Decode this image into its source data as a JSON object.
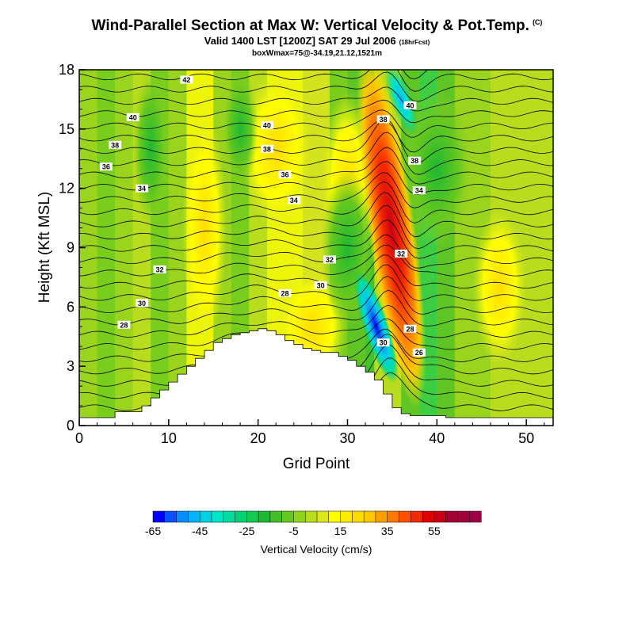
{
  "title": "Wind-Parallel Section at Max W: Vertical Velocity & Pot.Temp.",
  "copyright": "(C)",
  "subtitle": "Valid 1400 LST [1200Z] SAT 29 Jul 2006",
  "forecast": "(18hrFcst)",
  "subtitle2": "boxWmax=75@-34.19,21.12,1521m",
  "chart_data": {
    "type": "heatmap",
    "xlabel": "Grid Point",
    "ylabel": "Height (Kft MSL)",
    "xlim": [
      0,
      53
    ],
    "ylim": [
      0,
      18
    ],
    "xticks": [
      0,
      10,
      20,
      30,
      40,
      50
    ],
    "yticks": [
      0,
      3,
      6,
      9,
      12,
      15,
      18
    ],
    "colorbar": {
      "label": "Vertical Velocity (cm/s)",
      "tick_labels": [
        "-65",
        "-45",
        "-25",
        "-5",
        "15",
        "35",
        "55"
      ],
      "tick_values": [
        -65,
        -45,
        -25,
        -5,
        15,
        35,
        55
      ],
      "range": [
        -65,
        75
      ],
      "step": 5,
      "colors": [
        "#0000ff",
        "#0a50ff",
        "#0a8cff",
        "#00b4ff",
        "#00d2e6",
        "#00e6c8",
        "#00dca0",
        "#00d278",
        "#14c850",
        "#1eb932",
        "#41be28",
        "#64c81e",
        "#91d21e",
        "#b9dc1e",
        "#dce61e",
        "#ffff00",
        "#ffeb00",
        "#ffdc00",
        "#ffc800",
        "#ffa000",
        "#ff7800",
        "#ff5000",
        "#f52800",
        "#dc0000",
        "#c80014",
        "#a00032",
        "#a0003c",
        "#9b0046"
      ]
    },
    "terrain": [
      [
        0,
        0.4
      ],
      [
        2,
        0.4
      ],
      [
        4,
        0.7
      ],
      [
        6,
        0.7
      ],
      [
        7,
        1
      ],
      [
        8,
        1.4
      ],
      [
        9,
        1.8
      ],
      [
        10,
        2.2
      ],
      [
        11,
        2.6
      ],
      [
        12,
        3
      ],
      [
        13,
        3.4
      ],
      [
        14,
        3.8
      ],
      [
        15,
        4.2
      ],
      [
        16,
        4.4
      ],
      [
        17,
        4.6
      ],
      [
        18,
        4.7
      ],
      [
        19,
        4.8
      ],
      [
        20,
        4.9
      ],
      [
        21,
        4.8
      ],
      [
        22,
        4.6
      ],
      [
        23,
        4.3
      ],
      [
        24,
        4.1
      ],
      [
        25,
        3.9
      ],
      [
        26,
        3.8
      ],
      [
        27,
        3.7
      ],
      [
        28,
        3.7
      ],
      [
        29,
        3.5
      ],
      [
        30,
        3.3
      ],
      [
        31,
        3
      ],
      [
        32,
        2.7
      ],
      [
        33,
        2.3
      ],
      [
        34,
        1.6
      ],
      [
        35,
        0.9
      ],
      [
        36,
        0.6
      ],
      [
        37,
        0.5
      ],
      [
        38,
        0.5
      ],
      [
        40,
        0.5
      ],
      [
        41,
        0.4
      ],
      [
        53,
        0.4
      ]
    ],
    "updraft": {
      "grid_point": 34.5,
      "top_kft": 18,
      "bottom_kft": 4,
      "peak_cm_s": 75
    },
    "downdraft": {
      "grid_point": 33,
      "center_kft": 4.5,
      "min_cm_s": -65
    },
    "theta_contour_labels": [
      {
        "value": "42",
        "x": 12,
        "y": 17.5
      },
      {
        "value": "40",
        "x": 6,
        "y": 15.6
      },
      {
        "value": "40",
        "x": 21,
        "y": 15.2
      },
      {
        "value": "40",
        "x": 37,
        "y": 16.2
      },
      {
        "value": "38",
        "x": 4,
        "y": 14.2
      },
      {
        "value": "38",
        "x": 21,
        "y": 14.0
      },
      {
        "value": "38",
        "x": 34,
        "y": 15.5
      },
      {
        "value": "38",
        "x": 37.5,
        "y": 13.4
      },
      {
        "value": "36",
        "x": 3,
        "y": 13.1
      },
      {
        "value": "36",
        "x": 23,
        "y": 12.7
      },
      {
        "value": "34",
        "x": 7,
        "y": 12.0
      },
      {
        "value": "34",
        "x": 24,
        "y": 11.4
      },
      {
        "value": "34",
        "x": 38,
        "y": 11.9
      },
      {
        "value": "32",
        "x": 9,
        "y": 7.9
      },
      {
        "value": "32",
        "x": 28,
        "y": 8.4
      },
      {
        "value": "32",
        "x": 36,
        "y": 8.7
      },
      {
        "value": "30",
        "x": 7,
        "y": 6.2
      },
      {
        "value": "30",
        "x": 27,
        "y": 7.1
      },
      {
        "value": "30",
        "x": 34,
        "y": 4.2
      },
      {
        "value": "28",
        "x": 5,
        "y": 5.1
      },
      {
        "value": "28",
        "x": 23,
        "y": 6.7
      },
      {
        "value": "28",
        "x": 37,
        "y": 4.9
      },
      {
        "value": "26",
        "x": 38,
        "y": 3.7
      }
    ]
  }
}
